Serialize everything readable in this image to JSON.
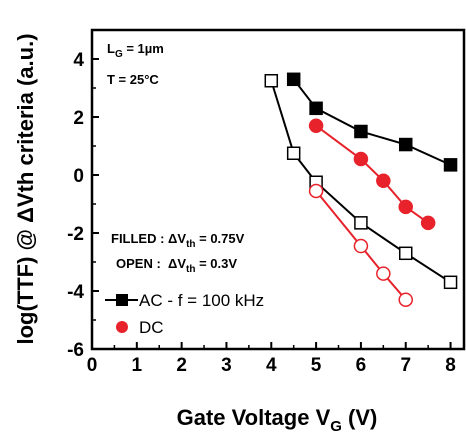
{
  "chart_data": {
    "type": "line",
    "xlabel": "Gate Voltage V",
    "xlabel_sub": "G",
    "xlabel_tail": " (V)",
    "ylabel": "log(TTF) @ ΔVth criteria (a.u.)",
    "xlim": [
      0,
      8.3
    ],
    "ylim": [
      -6,
      5
    ],
    "x_ticks": [
      0,
      1,
      2,
      3,
      4,
      5,
      6,
      7,
      8
    ],
    "y_ticks": [
      -6,
      -4,
      -2,
      0,
      2,
      4
    ],
    "grid": false,
    "annotations": {
      "lg": {
        "main": "L",
        "sub": "G",
        "tail": " = 1µm"
      },
      "temp": "T = 25°C",
      "filled": {
        "main": "FILLED : ΔV",
        "sub": "th",
        "tail": " = 0.75V"
      },
      "open": {
        "main": "OPEN :  ΔV",
        "sub": "th",
        "tail": " = 0.3V"
      }
    },
    "legend": {
      "position": "lower-left",
      "entries": [
        {
          "label": "AC - f = 100 kHz",
          "marker": "square",
          "color": "#000000",
          "line": true
        },
        {
          "label": "DC",
          "marker": "circle",
          "color": "#e8222a",
          "line": false
        }
      ]
    },
    "series": [
      {
        "id": "ac-filled",
        "marker": "square",
        "filled": true,
        "color": "#000000",
        "x": [
          4.5,
          5,
          6,
          7,
          8
        ],
        "y": [
          3.3,
          2.3,
          1.5,
          1.05,
          0.35
        ]
      },
      {
        "id": "dc-filled",
        "marker": "circle",
        "filled": true,
        "color": "#e8222a",
        "x": [
          5,
          6,
          6.5,
          7,
          7.5
        ],
        "y": [
          1.7,
          0.55,
          -0.2,
          -1.1,
          -1.65
        ]
      },
      {
        "id": "ac-open",
        "marker": "square",
        "filled": false,
        "color": "#000000",
        "x": [
          4,
          4.5,
          5,
          6,
          7,
          8
        ],
        "y": [
          3.25,
          0.75,
          -0.25,
          -1.65,
          -2.7,
          -3.7
        ]
      },
      {
        "id": "dc-open",
        "marker": "circle",
        "filled": false,
        "color": "#e8222a",
        "x": [
          5,
          6,
          6.5,
          7
        ],
        "y": [
          -0.55,
          -2.45,
          -3.4,
          -4.3
        ]
      }
    ]
  }
}
